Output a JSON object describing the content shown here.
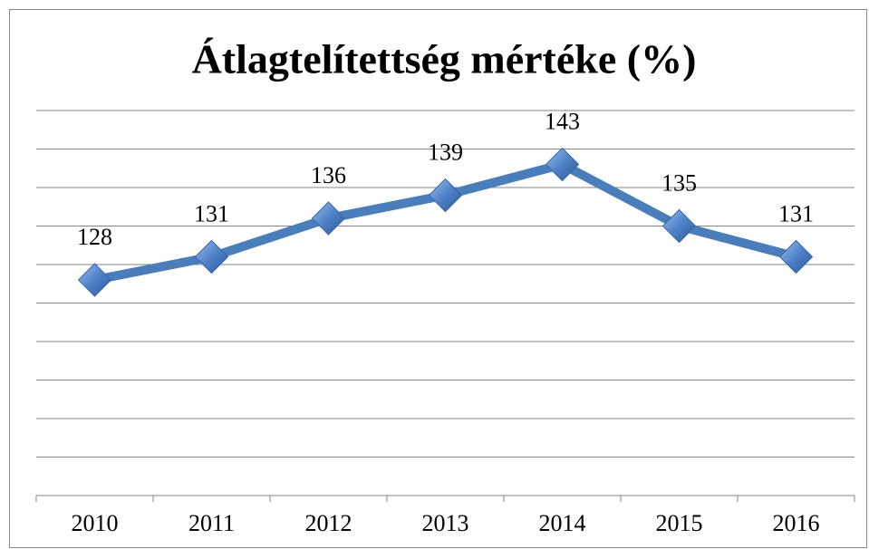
{
  "chart_data": {
    "type": "line",
    "title": "Átlagtelítettség mértéke (%)",
    "categories": [
      "2010",
      "2011",
      "2012",
      "2013",
      "2014",
      "2015",
      "2016"
    ],
    "values": [
      128,
      131,
      136,
      139,
      143,
      135,
      131
    ],
    "color": "#4a7ebb",
    "ylim": [
      100,
      150
    ],
    "yticks": [
      100,
      105,
      110,
      115,
      120,
      125,
      130,
      135,
      140,
      145,
      150
    ],
    "grid": true
  }
}
